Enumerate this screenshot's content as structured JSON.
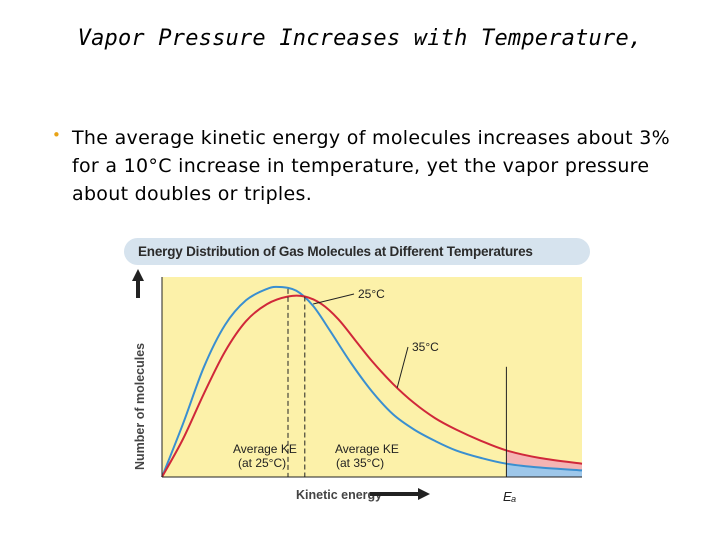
{
  "slide": {
    "title": "Vapor Pressure Increases with Temperature,",
    "bullet": "The average kinetic energy of molecules increases about 3% for a 10°C increase in temperature, yet the vapor pressure about doubles or triples."
  },
  "chart_data": {
    "type": "line",
    "title": "Energy Distribution of Gas Molecules at Different Temperatures",
    "xlabel": "Kinetic energy",
    "ylabel": "Number of molecules",
    "x_marker_label": "Eₐ",
    "series": [
      {
        "name": "25°C",
        "color": "#3a8fd0",
        "points": [
          [
            0,
            0
          ],
          [
            0.05,
            0.28
          ],
          [
            0.1,
            0.58
          ],
          [
            0.15,
            0.8
          ],
          [
            0.2,
            0.93
          ],
          [
            0.25,
            0.99
          ],
          [
            0.28,
            1.0
          ],
          [
            0.32,
            0.98
          ],
          [
            0.36,
            0.9
          ],
          [
            0.4,
            0.77
          ],
          [
            0.45,
            0.6
          ],
          [
            0.5,
            0.45
          ],
          [
            0.55,
            0.33
          ],
          [
            0.6,
            0.25
          ],
          [
            0.65,
            0.19
          ],
          [
            0.7,
            0.14
          ],
          [
            0.76,
            0.1
          ],
          [
            0.82,
            0.07
          ],
          [
            0.9,
            0.05
          ],
          [
            1.0,
            0.035
          ]
        ]
      },
      {
        "name": "35°C",
        "color": "#d0283a",
        "points": [
          [
            0,
            0
          ],
          [
            0.05,
            0.2
          ],
          [
            0.1,
            0.44
          ],
          [
            0.15,
            0.66
          ],
          [
            0.2,
            0.82
          ],
          [
            0.25,
            0.91
          ],
          [
            0.3,
            0.95
          ],
          [
            0.34,
            0.95
          ],
          [
            0.38,
            0.91
          ],
          [
            0.42,
            0.83
          ],
          [
            0.46,
            0.72
          ],
          [
            0.5,
            0.61
          ],
          [
            0.55,
            0.49
          ],
          [
            0.6,
            0.39
          ],
          [
            0.65,
            0.31
          ],
          [
            0.7,
            0.25
          ],
          [
            0.76,
            0.19
          ],
          [
            0.82,
            0.14
          ],
          [
            0.9,
            0.1
          ],
          [
            1.0,
            0.07
          ]
        ]
      }
    ],
    "avg_ke": [
      {
        "label_line1": "Average KE",
        "label_line2": "(at 25°C)",
        "x": 0.3
      },
      {
        "label_line1": "Average KE",
        "label_line2": "(at 35°C)",
        "x": 0.34
      }
    ],
    "activation_energy_x": 0.82,
    "colors": {
      "plot_background": "#fcf1a9",
      "title_bar": "#d6e3ee",
      "fill_25": "#9ec7ea",
      "fill_35": "#f4b4b4"
    }
  }
}
